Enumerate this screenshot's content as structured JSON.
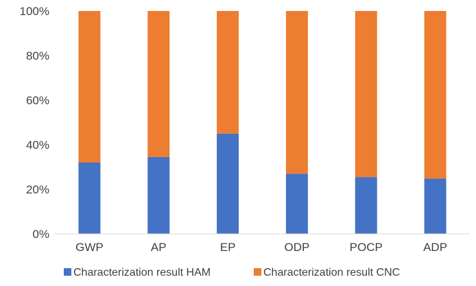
{
  "chart_data": {
    "type": "bar",
    "stacked": true,
    "percent": true,
    "categories": [
      "GWP",
      "AP",
      "EP",
      "ODP",
      "POCP",
      "ADP"
    ],
    "series": [
      {
        "name": "Characterization result HAM",
        "values": [
          32,
          34.5,
          45,
          27,
          25.5,
          24.8
        ],
        "color": "#4472c4"
      },
      {
        "name": "Characterization result CNC",
        "values": [
          68,
          65.5,
          55,
          73,
          74.5,
          75.2
        ],
        "color": "#ed7d31"
      }
    ],
    "ylim": [
      0,
      100
    ],
    "y_ticks": [
      "0%",
      "20%",
      "40%",
      "60%",
      "80%",
      "100%"
    ],
    "y_tick_values": [
      0,
      20,
      40,
      60,
      80,
      100
    ],
    "grid": false,
    "legend": "bottom",
    "title": "",
    "xlabel": "",
    "ylabel": ""
  }
}
